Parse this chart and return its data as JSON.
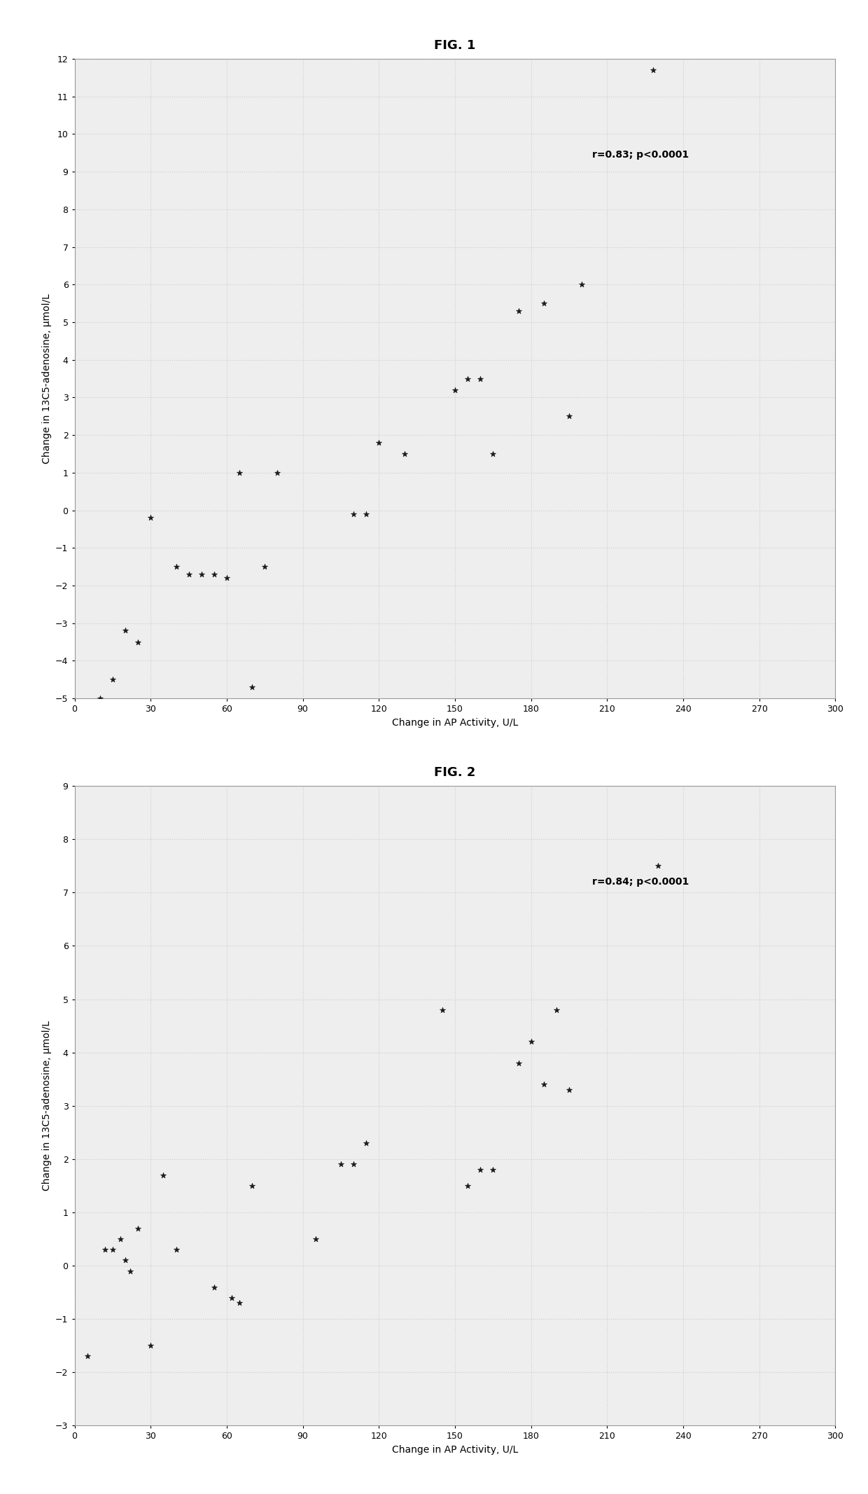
{
  "fig1": {
    "title": "FIG. 1",
    "xlabel": "Change in AP Activity, U/L",
    "ylabel": "Change in 13C5-adenosine, μmol/L",
    "annotation": "r=0.83; p<0.0001",
    "xlim": [
      0,
      300
    ],
    "ylim": [
      -5,
      12
    ],
    "xticks": [
      0,
      30,
      60,
      90,
      120,
      150,
      180,
      210,
      240,
      270,
      300
    ],
    "yticks": [
      -5,
      -4,
      -3,
      -2,
      -1,
      0,
      1,
      2,
      3,
      4,
      5,
      6,
      7,
      8,
      9,
      10,
      11,
      12
    ],
    "data_x": [
      10,
      15,
      20,
      25,
      30,
      40,
      45,
      50,
      55,
      60,
      65,
      70,
      75,
      80,
      110,
      115,
      120,
      130,
      150,
      155,
      160,
      165,
      175,
      185,
      195,
      200,
      228
    ],
    "data_y": [
      -5.0,
      -4.5,
      -3.2,
      -3.5,
      -0.2,
      -1.5,
      -1.7,
      -1.7,
      -1.7,
      -1.8,
      1.0,
      -4.7,
      -1.5,
      1.0,
      -0.1,
      -0.1,
      1.8,
      1.5,
      3.2,
      3.5,
      3.5,
      1.5,
      5.3,
      5.5,
      2.5,
      6.0,
      11.7
    ]
  },
  "fig2": {
    "title": "FIG. 2",
    "xlabel": "Change in AP Activity, U/L",
    "ylabel": "Change in 13C5-adenosine, μmol/L",
    "annotation": "r=0.84; p<0.0001",
    "xlim": [
      0,
      300
    ],
    "ylim": [
      -3,
      9
    ],
    "xticks": [
      0,
      30,
      60,
      90,
      120,
      150,
      180,
      210,
      240,
      270,
      300
    ],
    "yticks": [
      -3,
      -2,
      -1,
      0,
      1,
      2,
      3,
      4,
      5,
      6,
      7,
      8,
      9
    ],
    "data_x": [
      5,
      12,
      15,
      18,
      20,
      22,
      25,
      30,
      35,
      40,
      55,
      62,
      65,
      70,
      95,
      105,
      110,
      115,
      145,
      155,
      160,
      165,
      175,
      180,
      185,
      190,
      195,
      230
    ],
    "data_y": [
      -1.7,
      0.3,
      0.3,
      0.5,
      0.1,
      -0.1,
      0.7,
      -1.5,
      1.7,
      0.3,
      -0.4,
      -0.6,
      -0.7,
      1.5,
      0.5,
      1.9,
      1.9,
      2.3,
      4.8,
      1.5,
      1.8,
      1.8,
      3.8,
      4.2,
      3.4,
      4.8,
      3.3,
      7.5
    ]
  },
  "fig_bg_color": "#ffffff",
  "plot_bg_color": "#eeeeee",
  "marker_color": "#1a1a1a",
  "marker": "*",
  "marker_size": 6,
  "title_fontsize": 13,
  "label_fontsize": 10,
  "tick_fontsize": 9,
  "annot_fontsize": 10,
  "grid_color": "#cccccc",
  "grid_style": ":"
}
